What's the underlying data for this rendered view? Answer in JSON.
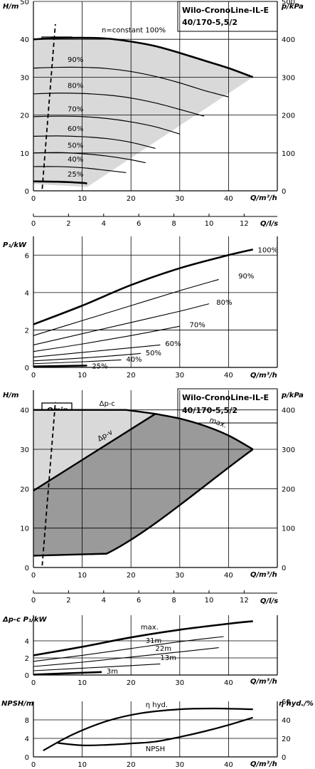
{
  "title": {
    "line1": "Wilo-CronoLine-IL-E",
    "line2": "40/170-5,5/2"
  },
  "qmin_label": "Qmin",
  "chart_data": [
    {
      "id": "head-speed",
      "type": "line",
      "ylabel_left": "H/m",
      "ylabel_right": "p/kPa",
      "xlabel": "Q/m³/h",
      "xlabel2": "Q/l/s",
      "xlim": [
        0,
        50
      ],
      "ylim": [
        0,
        50
      ],
      "yticks": [
        0,
        10,
        20,
        30,
        40,
        50
      ],
      "yticks_right": [
        0,
        100,
        200,
        300,
        400,
        500
      ],
      "xticks": [
        0,
        10,
        20,
        30,
        40
      ],
      "xticks_ls": [
        0,
        2,
        4,
        6,
        8,
        10,
        12
      ],
      "series": [
        {
          "name": "n=constant 100%",
          "bold": true,
          "x": [
            0,
            5,
            10,
            15,
            20,
            25,
            30,
            35,
            40,
            45
          ],
          "y": [
            40,
            40.3,
            40.4,
            40.2,
            39.4,
            38.2,
            36.4,
            34.4,
            32.4,
            30
          ]
        },
        {
          "name": "90%",
          "x": [
            0,
            5,
            10,
            15,
            20,
            25,
            30,
            35,
            40
          ],
          "y": [
            32.4,
            32.6,
            32.6,
            32.3,
            31.5,
            30.2,
            28.5,
            26.5,
            24.8
          ]
        },
        {
          "name": "80%",
          "x": [
            0,
            5,
            10,
            15,
            20,
            25,
            30,
            35
          ],
          "y": [
            25.6,
            25.8,
            25.7,
            25.3,
            24.5,
            23.2,
            21.5,
            19.7
          ]
        },
        {
          "name": "70%",
          "x": [
            0,
            5,
            10,
            15,
            20,
            25,
            30
          ],
          "y": [
            19.6,
            19.7,
            19.6,
            19.1,
            18.2,
            16.9,
            15
          ]
        },
        {
          "name": "60%",
          "x": [
            0,
            5,
            10,
            15,
            20,
            25
          ],
          "y": [
            14.4,
            14.5,
            14.3,
            13.8,
            12.8,
            11.2
          ]
        },
        {
          "name": "50%",
          "x": [
            0,
            5,
            10,
            15,
            20,
            23
          ],
          "y": [
            10,
            10.1,
            9.8,
            9.2,
            8.2,
            7.4
          ]
        },
        {
          "name": "40%",
          "x": [
            0,
            5,
            10,
            15,
            19
          ],
          "y": [
            6.4,
            6.4,
            6.1,
            5.4,
            4.8
          ]
        },
        {
          "name": "25%",
          "bold": true,
          "x": [
            0,
            5,
            10,
            11
          ],
          "y": [
            2.5,
            2.4,
            2.1,
            1.9
          ]
        }
      ],
      "curve_labels": [
        "n=constant 100%",
        "90%",
        "80%",
        "70%",
        "60%",
        "50%",
        "40%",
        "25%"
      ]
    },
    {
      "id": "power-speed",
      "type": "line",
      "ylabel": "P₁/kW",
      "xlabel": "Q/m³/h",
      "xlim": [
        0,
        50
      ],
      "ylim": [
        0,
        7
      ],
      "yticks": [
        0,
        2,
        4,
        6
      ],
      "xticks": [
        0,
        10,
        20,
        30,
        40
      ],
      "series": [
        {
          "name": "100%",
          "bold": true,
          "x": [
            0,
            10,
            20,
            30,
            40,
            45
          ],
          "y": [
            2.3,
            3.3,
            4.4,
            5.3,
            6.0,
            6.3
          ]
        },
        {
          "name": "90%",
          "x": [
            0,
            10,
            20,
            30,
            38
          ],
          "y": [
            1.7,
            2.5,
            3.3,
            4.1,
            4.7
          ]
        },
        {
          "name": "80%",
          "x": [
            0,
            10,
            20,
            30,
            36
          ],
          "y": [
            1.2,
            1.8,
            2.4,
            3.0,
            3.4
          ]
        },
        {
          "name": "70%",
          "x": [
            0,
            10,
            20,
            30
          ],
          "y": [
            0.85,
            1.25,
            1.7,
            2.2
          ]
        },
        {
          "name": "60%",
          "x": [
            0,
            10,
            20,
            26
          ],
          "y": [
            0.55,
            0.8,
            1.05,
            1.2
          ]
        },
        {
          "name": "50%",
          "x": [
            0,
            10,
            20,
            22
          ],
          "y": [
            0.35,
            0.5,
            0.7,
            0.75
          ]
        },
        {
          "name": "40%",
          "x": [
            0,
            10,
            18
          ],
          "y": [
            0.2,
            0.3,
            0.4
          ]
        },
        {
          "name": "25%",
          "bold": true,
          "x": [
            0,
            11
          ],
          "y": [
            0.05,
            0.1
          ]
        }
      ],
      "curve_labels": [
        "100%",
        "90%",
        "80%",
        "70%",
        "60%",
        "50%",
        "40%",
        "25%"
      ]
    },
    {
      "id": "head-control",
      "type": "area",
      "ylabel_left": "H/m",
      "ylabel_right": "p/kPa",
      "xlabel": "Q/m³/h",
      "xlabel2": "Q/l/s",
      "xlim": [
        0,
        50
      ],
      "ylim": [
        0,
        45
      ],
      "yticks": [
        0,
        10,
        20,
        30,
        40
      ],
      "yticks_right": [
        0,
        100,
        200,
        300,
        400
      ],
      "xticks": [
        0,
        10,
        20,
        30,
        40
      ],
      "xticks_ls": [
        0,
        2,
        4,
        6,
        8,
        10,
        12
      ],
      "series": [
        {
          "name": "Δp-c",
          "x": [
            0,
            19,
            25
          ],
          "y": [
            40,
            40,
            39
          ]
        },
        {
          "name": "Δp-v",
          "x": [
            0,
            25
          ],
          "y": [
            19.5,
            39
          ]
        },
        {
          "name": "max.",
          "x": [
            25,
            30,
            35,
            40,
            45
          ],
          "y": [
            39,
            37.8,
            36,
            33.5,
            30
          ]
        }
      ],
      "curve_labels": [
        "Δp-c",
        "Δp-v",
        "max."
      ]
    },
    {
      "id": "power-control",
      "type": "line",
      "ylabel": "Δp-c P₁/kW",
      "xlabel": "Q/m³/h",
      "xlim": [
        0,
        50
      ],
      "ylim": [
        0,
        7
      ],
      "yticks": [
        0,
        2,
        4
      ],
      "xticks": [
        0,
        10,
        20,
        30,
        40
      ],
      "series": [
        {
          "name": "max.",
          "bold": true,
          "x": [
            0,
            10,
            20,
            30,
            40,
            45
          ],
          "y": [
            2.3,
            3.3,
            4.4,
            5.3,
            6.0,
            6.3
          ]
        },
        {
          "name": "31m",
          "x": [
            0,
            10,
            20,
            30,
            39
          ],
          "y": [
            1.6,
            2.3,
            3.1,
            3.9,
            4.5
          ]
        },
        {
          "name": "22m",
          "x": [
            0,
            10,
            20,
            30,
            38
          ],
          "y": [
            1.0,
            1.5,
            2.1,
            2.7,
            3.2
          ]
        },
        {
          "name": "13m",
          "x": [
            0,
            10,
            20,
            26
          ],
          "y": [
            0.5,
            0.8,
            1.1,
            1.3
          ]
        },
        {
          "name": "3m",
          "bold": true,
          "x": [
            0,
            14
          ],
          "y": [
            0.05,
            0.35
          ]
        }
      ],
      "curve_labels": [
        "max.",
        "31m",
        "22m",
        "13m",
        "3m"
      ]
    },
    {
      "id": "npsh-eff",
      "type": "line",
      "ylabel_left": "NPSH/m",
      "ylabel_right": "η hyd./%",
      "xlabel": "Q/m³/h",
      "xlim": [
        0,
        50
      ],
      "ylim": [
        0,
        12
      ],
      "yticks": [
        0,
        4,
        8
      ],
      "yticks_right": [
        0,
        20,
        40,
        60
      ],
      "xticks": [
        0,
        10,
        20,
        30,
        40
      ],
      "series": [
        {
          "name": "η hyd.",
          "axis": "right",
          "x": [
            2,
            8,
            15,
            22,
            30,
            37,
            45
          ],
          "y": [
            8,
            28,
            45,
            55,
            60,
            61,
            60
          ]
        },
        {
          "name": "NPSH",
          "axis": "left",
          "x": [
            5,
            10,
            15,
            20,
            25,
            30,
            35,
            40,
            45
          ],
          "y": [
            3.0,
            2.5,
            2.6,
            2.9,
            3.3,
            4.3,
            5.5,
            6.9,
            8.5
          ]
        }
      ],
      "curve_labels": [
        "η hyd.",
        "NPSH"
      ]
    }
  ]
}
